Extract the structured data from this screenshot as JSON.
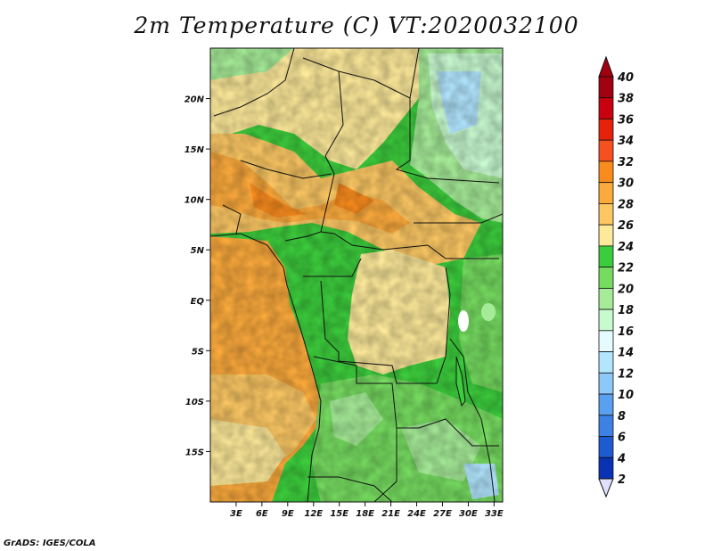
{
  "title": "2m Temperature (C) VT:2020032100",
  "credit": "GrADS: IGES/COLA",
  "map": {
    "lon_range": [
      0,
      34
    ],
    "lat_range": [
      -20,
      25
    ],
    "lon_ticks": [
      "3E",
      "6E",
      "9E",
      "12E",
      "15E",
      "18E",
      "21E",
      "24E",
      "27E",
      "30E",
      "33E"
    ],
    "lon_tick_values": [
      3,
      6,
      9,
      12,
      15,
      18,
      21,
      24,
      27,
      30,
      33
    ],
    "lat_ticks": [
      "20N",
      "15N",
      "10N",
      "5N",
      "EQ",
      "5S",
      "10S",
      "15S"
    ],
    "lat_tick_values": [
      20,
      15,
      10,
      5,
      0,
      -5,
      -10,
      -15
    ]
  },
  "colorbar": {
    "labels": [
      "40",
      "38",
      "36",
      "34",
      "32",
      "30",
      "28",
      "26",
      "24",
      "22",
      "20",
      "18",
      "16",
      "14",
      "12",
      "10",
      "8",
      "6",
      "4",
      "2"
    ],
    "colors": [
      "#a0000f",
      "#c8000f",
      "#e6220a",
      "#f5501e",
      "#fa8c1e",
      "#fcaa3c",
      "#fdc864",
      "#fde99a",
      "#3ccd3c",
      "#76dc60",
      "#a6ec98",
      "#c8fad0",
      "#e6fbff",
      "#b2e6ff",
      "#8cc8f8",
      "#5aa0f0",
      "#3c82e6",
      "#1e5ad2",
      "#0a32b4",
      "#101070"
    ],
    "top_arrow_color": "#a0000f",
    "bottom_arrow_color": "#e0e0ff"
  }
}
